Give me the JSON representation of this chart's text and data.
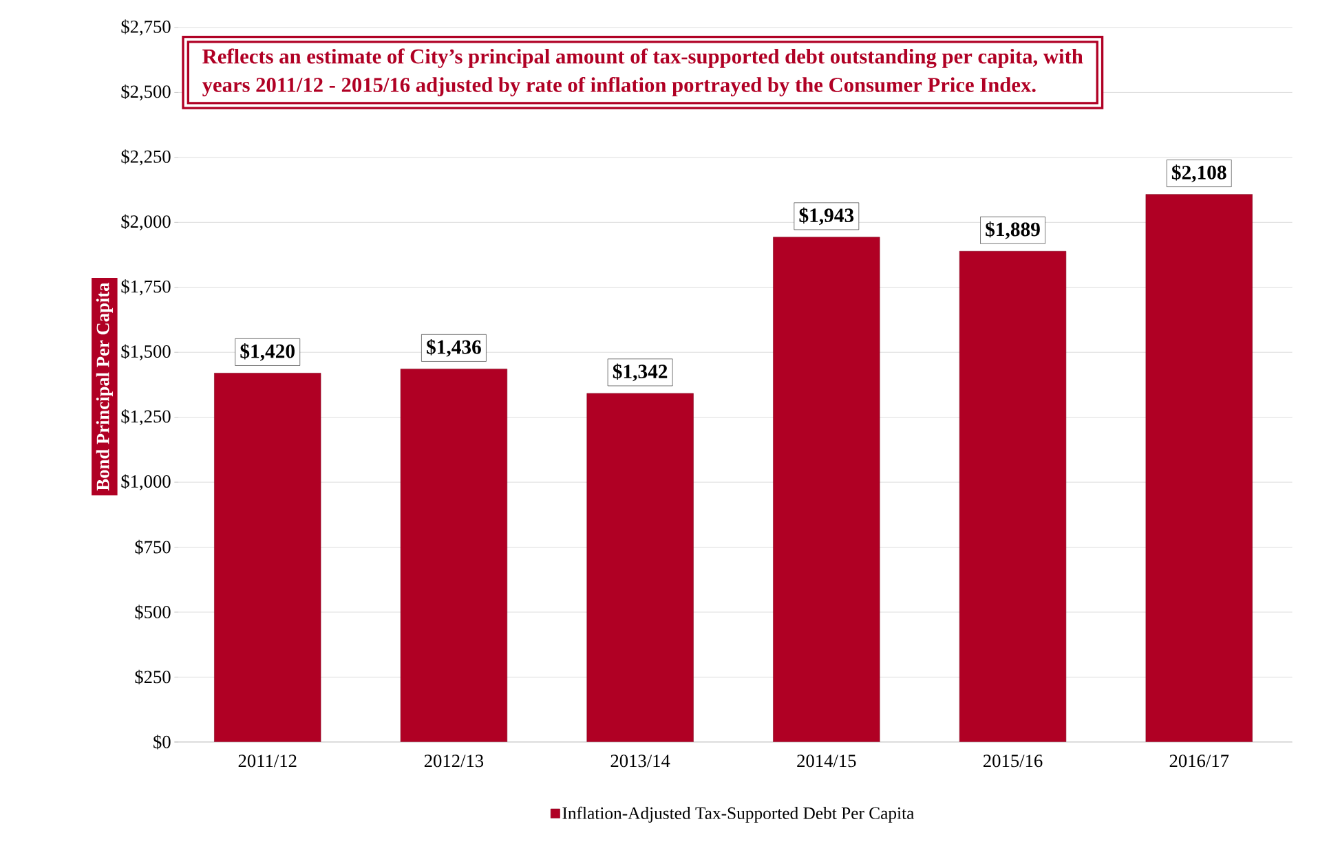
{
  "chart_data": {
    "type": "bar",
    "ylabel": "Bond Principal Per Capita",
    "categories": [
      "2011/12",
      "2012/13",
      "2013/14",
      "2014/15",
      "2015/16",
      "2016/17"
    ],
    "series": [
      {
        "name": "Inflation-Adjusted Tax-Supported Debt Per Capita",
        "color": "#b00024",
        "values": [
          1420,
          1436,
          1342,
          1943,
          1889,
          2108
        ]
      }
    ],
    "value_labels": [
      "$1,420",
      "$1,436",
      "$1,342",
      "$1,943",
      "$1,889",
      "$2,108"
    ],
    "ylim": [
      0,
      2750
    ],
    "yticks": [
      {
        "value": 0,
        "label": "$0"
      },
      {
        "value": 250,
        "label": "$250"
      },
      {
        "value": 500,
        "label": "$500"
      },
      {
        "value": 750,
        "label": "$750"
      },
      {
        "value": 1000,
        "label": "$1,000"
      },
      {
        "value": 1250,
        "label": "$1,250"
      },
      {
        "value": 1500,
        "label": "$1,500"
      },
      {
        "value": 1750,
        "label": "$1,750"
      },
      {
        "value": 2000,
        "label": "$2,000"
      },
      {
        "value": 2250,
        "label": "$2,250"
      },
      {
        "value": 2500,
        "label": "$2,500"
      },
      {
        "value": 2750,
        "label": "$2,750"
      }
    ],
    "grid": "y",
    "legend": "bottom",
    "annotations": [
      "Reflects an estimate of City’s principal amount of tax-supported debt outstanding per capita, with years 2011/12 - 2015/16 adjusted by rate of inflation portrayed by the Consumer Price Index."
    ]
  }
}
